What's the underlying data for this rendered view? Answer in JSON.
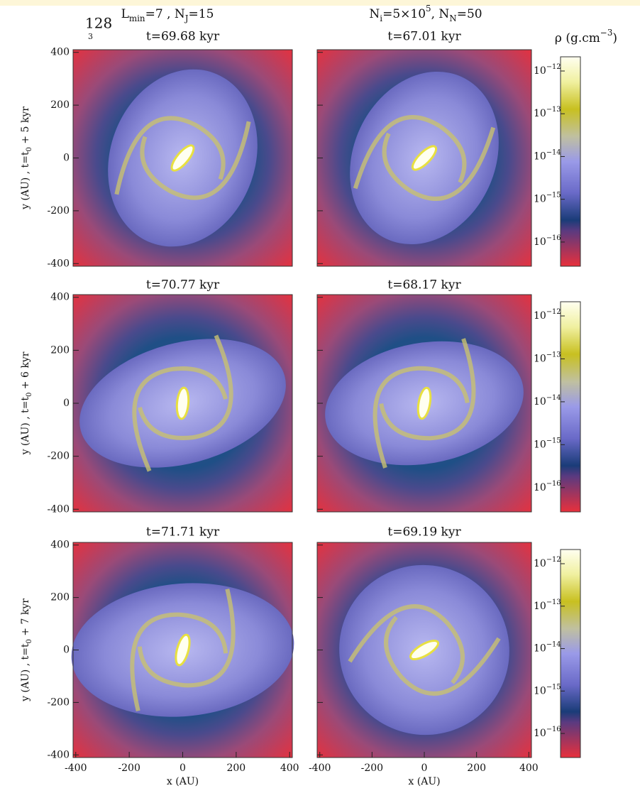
{
  "page_number": "128",
  "page_marker": "3",
  "column_headers": [
    [
      {
        "text": "L"
      },
      {
        "text": "min",
        "sub": true
      },
      {
        "text": "=7 , N"
      },
      {
        "text": "J",
        "sub": true
      },
      {
        "text": "=15"
      }
    ],
    [
      {
        "text": "N"
      },
      {
        "text": "i",
        "sub": true
      },
      {
        "text": "=5×10"
      },
      {
        "text": "5",
        "sup": true
      },
      {
        "text": ", N"
      },
      {
        "text": "N",
        "sub": true
      },
      {
        "text": "=50"
      }
    ]
  ],
  "colorbar_title": [
    {
      "text": "ρ (g.cm"
    },
    {
      "text": "−3",
      "sup": true
    },
    {
      "text": ")"
    }
  ],
  "rows": [
    {
      "ylabel": [
        {
          "text": "y (AU) , t=t"
        },
        {
          "text": "0",
          "sub": true
        },
        {
          "text": " + 5 kyr"
        }
      ],
      "panel_titles": [
        "t=69.68 kyr",
        "t=67.01 kyr"
      ]
    },
    {
      "ylabel": [
        {
          "text": "y (AU) , t=t"
        },
        {
          "text": "0",
          "sub": true
        },
        {
          "text": " + 6 kyr"
        }
      ],
      "panel_titles": [
        "t=70.77 kyr",
        "t=68.17 kyr"
      ]
    },
    {
      "ylabel": [
        {
          "text": "y (AU) , t=t"
        },
        {
          "text": "0",
          "sub": true
        },
        {
          "text": " + 7 kyr"
        }
      ],
      "panel_titles": [
        "t=71.71 kyr",
        "t=69.19 kyr"
      ]
    }
  ],
  "axes": {
    "xlim": [
      -410,
      410
    ],
    "ylim": [
      -410,
      410
    ],
    "xticks": [
      -400,
      -200,
      0,
      200,
      400
    ],
    "yticks": [
      400,
      200,
      0,
      -200,
      -400
    ],
    "xlabel": "x (AU)"
  },
  "colorbar_ticks": [
    {
      "base": "10",
      "exponent": "−12"
    },
    {
      "base": "10",
      "exponent": "−13"
    },
    {
      "base": "10",
      "exponent": "−14"
    },
    {
      "base": "10",
      "exponent": "−15"
    },
    {
      "base": "10",
      "exponent": "−16"
    }
  ]
}
